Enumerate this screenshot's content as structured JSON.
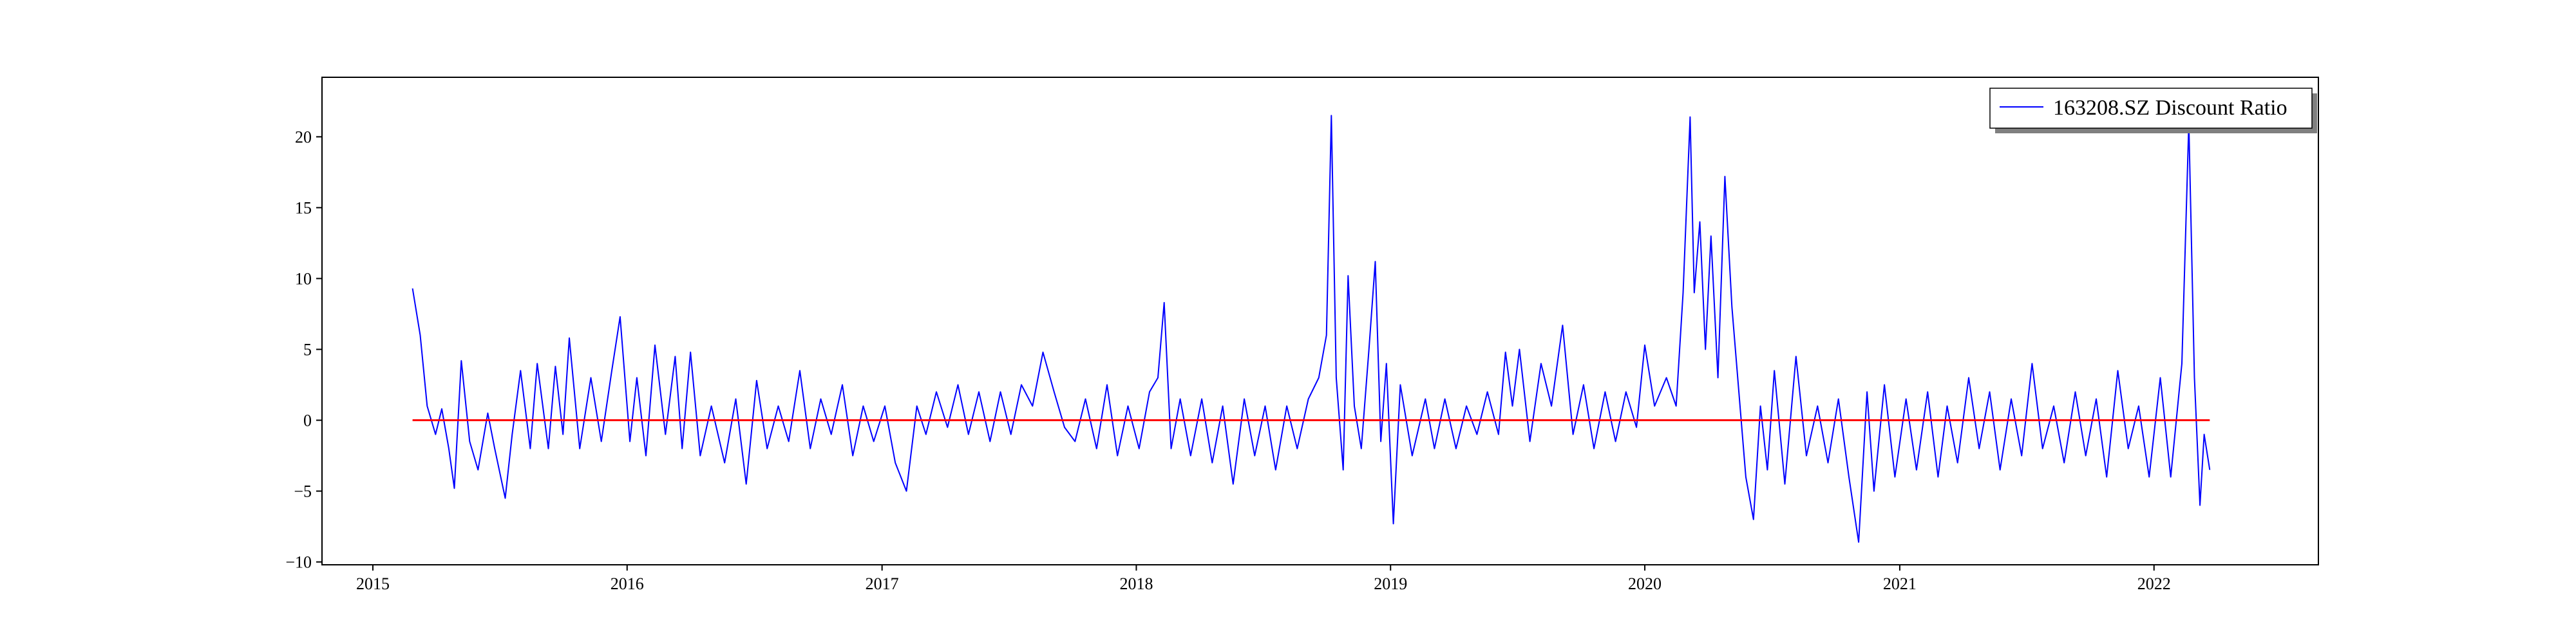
{
  "chart_data": {
    "type": "line",
    "title": "",
    "xlabel": "",
    "ylabel": "",
    "x_range": [
      "2014-10-20",
      "2022-08-25"
    ],
    "ylim": [
      -10.2,
      24.2
    ],
    "x_ticks": [
      "2015",
      "2016",
      "2017",
      "2018",
      "2019",
      "2020",
      "2021",
      "2022"
    ],
    "y_ticks": [
      -10,
      -5,
      0,
      5,
      10,
      15,
      20
    ],
    "grid": false,
    "legend_position": "top-right",
    "series": [
      {
        "name": "163208.SZ Discount Ratio",
        "color": "#0000ff",
        "points": [
          [
            "2015-02-27",
            9.3
          ],
          [
            "2015-03-10",
            6.0
          ],
          [
            "2015-03-20",
            1.0
          ],
          [
            "2015-04-01",
            -1.0
          ],
          [
            "2015-04-10",
            0.8
          ],
          [
            "2015-04-20",
            -2.0
          ],
          [
            "2015-04-28",
            -4.8
          ],
          [
            "2015-05-08",
            4.2
          ],
          [
            "2015-05-20",
            -1.5
          ],
          [
            "2015-06-01",
            -3.5
          ],
          [
            "2015-06-15",
            0.5
          ],
          [
            "2015-06-25",
            -2.0
          ],
          [
            "2015-07-10",
            -5.5
          ],
          [
            "2015-07-20",
            -1.0
          ],
          [
            "2015-08-01",
            3.5
          ],
          [
            "2015-08-15",
            -2.0
          ],
          [
            "2015-08-25",
            4.0
          ],
          [
            "2015-09-10",
            -2.0
          ],
          [
            "2015-09-20",
            3.8
          ],
          [
            "2015-10-01",
            -1.0
          ],
          [
            "2015-10-10",
            5.8
          ],
          [
            "2015-10-25",
            -2.0
          ],
          [
            "2015-11-10",
            3.0
          ],
          [
            "2015-11-25",
            -1.5
          ],
          [
            "2015-12-10",
            3.5
          ],
          [
            "2015-12-22",
            7.3
          ],
          [
            "2016-01-05",
            -1.5
          ],
          [
            "2016-01-15",
            3.0
          ],
          [
            "2016-01-28",
            -2.5
          ],
          [
            "2016-02-10",
            5.3
          ],
          [
            "2016-02-25",
            -1.0
          ],
          [
            "2016-03-10",
            4.5
          ],
          [
            "2016-03-20",
            -2.0
          ],
          [
            "2016-04-01",
            4.8
          ],
          [
            "2016-04-15",
            -2.5
          ],
          [
            "2016-05-01",
            1.0
          ],
          [
            "2016-05-20",
            -3.0
          ],
          [
            "2016-06-05",
            1.5
          ],
          [
            "2016-06-20",
            -4.5
          ],
          [
            "2016-07-05",
            2.8
          ],
          [
            "2016-07-20",
            -2.0
          ],
          [
            "2016-08-05",
            1.0
          ],
          [
            "2016-08-20",
            -1.5
          ],
          [
            "2016-09-05",
            3.5
          ],
          [
            "2016-09-20",
            -2.0
          ],
          [
            "2016-10-05",
            1.5
          ],
          [
            "2016-10-20",
            -1.0
          ],
          [
            "2016-11-05",
            2.5
          ],
          [
            "2016-11-20",
            -2.5
          ],
          [
            "2016-12-05",
            1.0
          ],
          [
            "2016-12-20",
            -1.5
          ],
          [
            "2017-01-05",
            1.0
          ],
          [
            "2017-01-20",
            -3.0
          ],
          [
            "2017-02-05",
            -5.0
          ],
          [
            "2017-02-20",
            1.0
          ],
          [
            "2017-03-05",
            -1.0
          ],
          [
            "2017-03-20",
            2.0
          ],
          [
            "2017-04-05",
            -0.5
          ],
          [
            "2017-04-20",
            2.5
          ],
          [
            "2017-05-05",
            -1.0
          ],
          [
            "2017-05-20",
            2.0
          ],
          [
            "2017-06-05",
            -1.5
          ],
          [
            "2017-06-20",
            2.0
          ],
          [
            "2017-07-05",
            -1.0
          ],
          [
            "2017-07-20",
            2.5
          ],
          [
            "2017-08-05",
            1.0
          ],
          [
            "2017-08-20",
            4.8
          ],
          [
            "2017-09-05",
            2.0
          ],
          [
            "2017-09-20",
            -0.5
          ],
          [
            "2017-10-05",
            -1.5
          ],
          [
            "2017-10-20",
            1.5
          ],
          [
            "2017-11-05",
            -2.0
          ],
          [
            "2017-11-20",
            2.5
          ],
          [
            "2017-12-05",
            -2.5
          ],
          [
            "2017-12-20",
            1.0
          ],
          [
            "2018-01-05",
            -2.0
          ],
          [
            "2018-01-20",
            2.0
          ],
          [
            "2018-02-01",
            3.0
          ],
          [
            "2018-02-10",
            8.3
          ],
          [
            "2018-02-20",
            -2.0
          ],
          [
            "2018-03-05",
            1.5
          ],
          [
            "2018-03-20",
            -2.5
          ],
          [
            "2018-04-05",
            1.5
          ],
          [
            "2018-04-20",
            -3.0
          ],
          [
            "2018-05-05",
            1.0
          ],
          [
            "2018-05-20",
            -4.5
          ],
          [
            "2018-06-05",
            1.5
          ],
          [
            "2018-06-20",
            -2.5
          ],
          [
            "2018-07-05",
            1.0
          ],
          [
            "2018-07-20",
            -3.5
          ],
          [
            "2018-08-05",
            1.0
          ],
          [
            "2018-08-20",
            -2.0
          ],
          [
            "2018-09-05",
            1.5
          ],
          [
            "2018-09-20",
            3.0
          ],
          [
            "2018-10-01",
            6.0
          ],
          [
            "2018-10-08",
            21.5
          ],
          [
            "2018-10-15",
            3.0
          ],
          [
            "2018-10-25",
            -3.5
          ],
          [
            "2018-11-01",
            10.2
          ],
          [
            "2018-11-10",
            1.0
          ],
          [
            "2018-11-20",
            -2.0
          ],
          [
            "2018-12-01",
            5.0
          ],
          [
            "2018-12-10",
            11.2
          ],
          [
            "2018-12-18",
            -1.5
          ],
          [
            "2018-12-26",
            4.0
          ],
          [
            "2019-01-05",
            -7.3
          ],
          [
            "2019-01-15",
            2.5
          ],
          [
            "2019-02-01",
            -2.5
          ],
          [
            "2019-02-20",
            1.5
          ],
          [
            "2019-03-05",
            -2.0
          ],
          [
            "2019-03-20",
            1.5
          ],
          [
            "2019-04-05",
            -2.0
          ],
          [
            "2019-04-20",
            1.0
          ],
          [
            "2019-05-05",
            -1.0
          ],
          [
            "2019-05-20",
            2.0
          ],
          [
            "2019-06-05",
            -1.0
          ],
          [
            "2019-06-15",
            4.8
          ],
          [
            "2019-06-25",
            1.0
          ],
          [
            "2019-07-05",
            5.0
          ],
          [
            "2019-07-20",
            -1.5
          ],
          [
            "2019-08-05",
            4.0
          ],
          [
            "2019-08-20",
            1.0
          ],
          [
            "2019-09-05",
            6.7
          ],
          [
            "2019-09-20",
            -1.0
          ],
          [
            "2019-10-05",
            2.5
          ],
          [
            "2019-10-20",
            -2.0
          ],
          [
            "2019-11-05",
            2.0
          ],
          [
            "2019-11-20",
            -1.5
          ],
          [
            "2019-12-05",
            2.0
          ],
          [
            "2019-12-20",
            -0.5
          ],
          [
            "2020-01-01",
            5.3
          ],
          [
            "2020-01-15",
            1.0
          ],
          [
            "2020-02-01",
            3.0
          ],
          [
            "2020-02-15",
            1.0
          ],
          [
            "2020-02-25",
            9.0
          ],
          [
            "2020-03-06",
            21.4
          ],
          [
            "2020-03-12",
            9.0
          ],
          [
            "2020-03-20",
            14.0
          ],
          [
            "2020-03-28",
            5.0
          ],
          [
            "2020-04-05",
            13.0
          ],
          [
            "2020-04-15",
            3.0
          ],
          [
            "2020-04-25",
            17.2
          ],
          [
            "2020-05-05",
            8.0
          ],
          [
            "2020-05-15",
            2.0
          ],
          [
            "2020-05-25",
            -4.0
          ],
          [
            "2020-06-05",
            -7.0
          ],
          [
            "2020-06-15",
            1.0
          ],
          [
            "2020-06-25",
            -3.5
          ],
          [
            "2020-07-05",
            3.5
          ],
          [
            "2020-07-20",
            -4.5
          ],
          [
            "2020-08-05",
            4.5
          ],
          [
            "2020-08-20",
            -2.5
          ],
          [
            "2020-09-05",
            1.0
          ],
          [
            "2020-09-20",
            -3.0
          ],
          [
            "2020-10-05",
            1.5
          ],
          [
            "2020-10-20",
            -4.0
          ],
          [
            "2020-11-03",
            -8.6
          ],
          [
            "2020-11-15",
            2.0
          ],
          [
            "2020-11-25",
            -5.0
          ],
          [
            "2020-12-10",
            2.5
          ],
          [
            "2020-12-25",
            -4.0
          ],
          [
            "2021-01-10",
            1.5
          ],
          [
            "2021-01-25",
            -3.5
          ],
          [
            "2021-02-10",
            2.0
          ],
          [
            "2021-02-25",
            -4.0
          ],
          [
            "2021-03-10",
            1.0
          ],
          [
            "2021-03-25",
            -3.0
          ],
          [
            "2021-04-10",
            3.0
          ],
          [
            "2021-04-25",
            -2.0
          ],
          [
            "2021-05-10",
            2.0
          ],
          [
            "2021-05-25",
            -3.5
          ],
          [
            "2021-06-10",
            1.5
          ],
          [
            "2021-06-25",
            -2.5
          ],
          [
            "2021-07-10",
            4.0
          ],
          [
            "2021-07-25",
            -2.0
          ],
          [
            "2021-08-10",
            1.0
          ],
          [
            "2021-08-25",
            -3.0
          ],
          [
            "2021-09-10",
            2.0
          ],
          [
            "2021-09-25",
            -2.5
          ],
          [
            "2021-10-10",
            1.5
          ],
          [
            "2021-10-25",
            -4.0
          ],
          [
            "2021-11-10",
            3.5
          ],
          [
            "2021-11-25",
            -2.0
          ],
          [
            "2021-12-10",
            1.0
          ],
          [
            "2021-12-25",
            -4.0
          ],
          [
            "2022-01-10",
            3.0
          ],
          [
            "2022-01-25",
            -4.0
          ],
          [
            "2022-02-10",
            4.0
          ],
          [
            "2022-02-20",
            21.0
          ],
          [
            "2022-02-28",
            3.0
          ],
          [
            "2022-03-08",
            -6.0
          ],
          [
            "2022-03-14",
            -1.0
          ],
          [
            "2022-03-22",
            -3.5
          ]
        ]
      },
      {
        "name": "",
        "color": "#ff0000",
        "points": [
          [
            "2015-02-27",
            0
          ],
          [
            "2022-03-22",
            0
          ]
        ]
      }
    ]
  }
}
